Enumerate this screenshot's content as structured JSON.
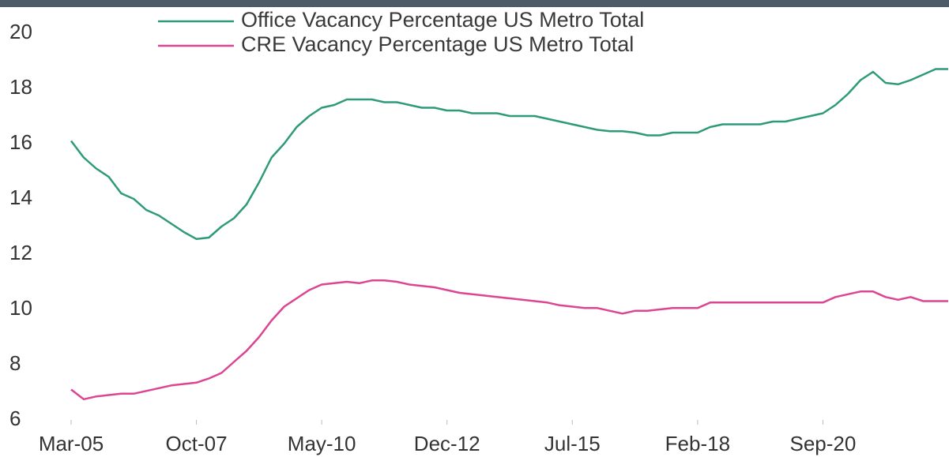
{
  "chart_data": {
    "type": "line",
    "categories": [
      "Mar-05",
      null,
      null,
      null,
      null,
      null,
      null,
      null,
      null,
      null,
      "Oct-07",
      null,
      null,
      null,
      null,
      null,
      null,
      null,
      null,
      null,
      "May-10",
      null,
      null,
      null,
      null,
      null,
      null,
      null,
      null,
      null,
      "Dec-12",
      null,
      null,
      null,
      null,
      null,
      null,
      null,
      null,
      null,
      "Jul-15",
      null,
      null,
      null,
      null,
      null,
      null,
      null,
      null,
      null,
      "Feb-18",
      null,
      null,
      null,
      null,
      null,
      null,
      null,
      null,
      null,
      "Sep-20",
      null,
      null,
      null,
      null,
      null,
      null,
      null,
      null,
      null,
      null
    ],
    "series": [
      {
        "name": "Office Vacancy Percentage US Metro Total",
        "color": "#2e9a7a",
        "values": [
          16.1,
          15.5,
          15.1,
          14.8,
          14.2,
          14.0,
          13.6,
          13.4,
          13.1,
          12.8,
          12.55,
          12.6,
          13.0,
          13.3,
          13.8,
          14.6,
          15.5,
          16.0,
          16.6,
          17.0,
          17.3,
          17.4,
          17.6,
          17.6,
          17.6,
          17.5,
          17.5,
          17.4,
          17.3,
          17.3,
          17.2,
          17.2,
          17.1,
          17.1,
          17.1,
          17.0,
          17.0,
          17.0,
          16.9,
          16.8,
          16.7,
          16.6,
          16.5,
          16.45,
          16.45,
          16.4,
          16.3,
          16.3,
          16.4,
          16.4,
          16.4,
          16.6,
          16.7,
          16.7,
          16.7,
          16.7,
          16.8,
          16.8,
          16.9,
          17.0,
          17.1,
          17.4,
          17.8,
          18.3,
          18.6,
          18.2,
          18.15,
          18.3,
          18.5,
          18.7,
          18.7
        ]
      },
      {
        "name": "CRE Vacancy Percentage US Metro Total",
        "color": "#dc4592",
        "values": [
          7.1,
          6.75,
          6.85,
          6.9,
          6.95,
          6.95,
          7.05,
          7.15,
          7.25,
          7.3,
          7.35,
          7.5,
          7.7,
          8.1,
          8.5,
          9.0,
          9.6,
          10.1,
          10.4,
          10.7,
          10.9,
          10.95,
          11.0,
          10.95,
          11.05,
          11.05,
          11.0,
          10.9,
          10.85,
          10.8,
          10.7,
          10.6,
          10.55,
          10.5,
          10.45,
          10.4,
          10.35,
          10.3,
          10.25,
          10.15,
          10.1,
          10.05,
          10.05,
          9.95,
          9.85,
          9.95,
          9.95,
          10.0,
          10.05,
          10.05,
          10.05,
          10.25,
          10.25,
          10.25,
          10.25,
          10.25,
          10.25,
          10.25,
          10.25,
          10.25,
          10.25,
          10.45,
          10.55,
          10.65,
          10.65,
          10.45,
          10.35,
          10.45,
          10.3,
          10.3,
          10.3
        ]
      }
    ],
    "ylim": [
      6,
      20
    ],
    "yticks": [
      6,
      8,
      10,
      12,
      14,
      16,
      18,
      20
    ]
  }
}
